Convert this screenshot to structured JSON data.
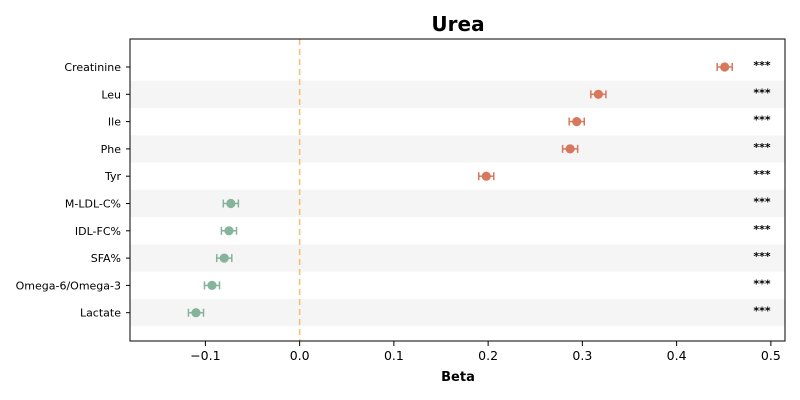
{
  "chart_data": {
    "type": "scatter",
    "title": "Urea",
    "xlabel": "Beta",
    "ylabel": "",
    "xlim": [
      -0.18,
      0.515
    ],
    "xticks": [
      -0.1,
      0.0,
      0.1,
      0.2,
      0.3,
      0.4,
      0.5
    ],
    "xtick_labels": [
      "−0.1",
      "0.0",
      "0.1",
      "0.2",
      "0.3",
      "0.4",
      "0.5"
    ],
    "reference_line": 0.0,
    "grid": false,
    "categories": [
      "Creatinine",
      "Leu",
      "Ile",
      "Phe",
      "Tyr",
      "M-LDL-C%",
      "IDL-FC%",
      "SFA%",
      "Omega-6/Omega-3",
      "Lactate"
    ],
    "beta": [
      0.451,
      0.317,
      0.294,
      0.287,
      0.198,
      -0.073,
      -0.075,
      -0.08,
      -0.093,
      -0.11
    ],
    "ci_low": [
      0.443,
      0.309,
      0.286,
      0.279,
      0.19,
      -0.081,
      -0.083,
      -0.088,
      -0.101,
      -0.118
    ],
    "ci_high": [
      0.459,
      0.325,
      0.302,
      0.295,
      0.206,
      -0.065,
      -0.067,
      -0.072,
      -0.085,
      -0.102
    ],
    "significance": [
      "***",
      "***",
      "***",
      "***",
      "***",
      "***",
      "***",
      "***",
      "***",
      "***"
    ],
    "colors": {
      "positive": "#d9775c",
      "negative": "#86b39b",
      "reference_line": "#f5c27a",
      "band": "#f5f5f5"
    }
  }
}
